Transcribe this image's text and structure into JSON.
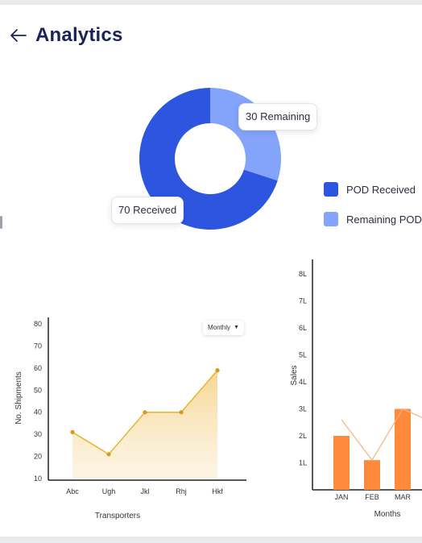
{
  "header": {
    "title": "Analytics",
    "back_icon": "arrow-left-icon"
  },
  "colors": {
    "primary": "#2d55e0",
    "secondary": "#84a4fb",
    "line": "#e8b331",
    "bar": "#ff8a3c"
  },
  "donut": {
    "received_label": "70 Received",
    "remaining_label": "30 Remaining"
  },
  "legend": {
    "items": [
      {
        "label": "POD Received",
        "color": "#2d55e0"
      },
      {
        "label": "Remaining POD",
        "color": "#84a4fb"
      }
    ]
  },
  "line_chart": {
    "dropdown": "Monthly"
  },
  "chart_data": [
    {
      "type": "pie",
      "categories": [
        "Received",
        "Remaining"
      ],
      "values": [
        70,
        30
      ]
    },
    {
      "type": "area",
      "categories": [
        "Abc",
        "Ugh",
        "Jkl",
        "Rhj",
        "Hkf"
      ],
      "values": [
        31,
        21,
        40,
        40,
        59
      ],
      "xlabel": "Transporters",
      "ylabel": "No. Shipments",
      "ylim": [
        10,
        80
      ],
      "yticks": [
        "10",
        "20",
        "30",
        "40",
        "50",
        "60",
        "70",
        "80"
      ]
    },
    {
      "type": "bar",
      "categories": [
        "JAN",
        "FEB",
        "MAR"
      ],
      "values": [
        2.0,
        1.1,
        3.0
      ],
      "overlay_line": [
        2.6,
        1.1,
        3.0
      ],
      "xlabel": "Months",
      "ylabel": "Sales",
      "ylim": [
        0,
        8.5
      ],
      "yticks": [
        "1L",
        "2L",
        "3L",
        "4L",
        "5L",
        "6L",
        "7L",
        "8L"
      ]
    }
  ]
}
